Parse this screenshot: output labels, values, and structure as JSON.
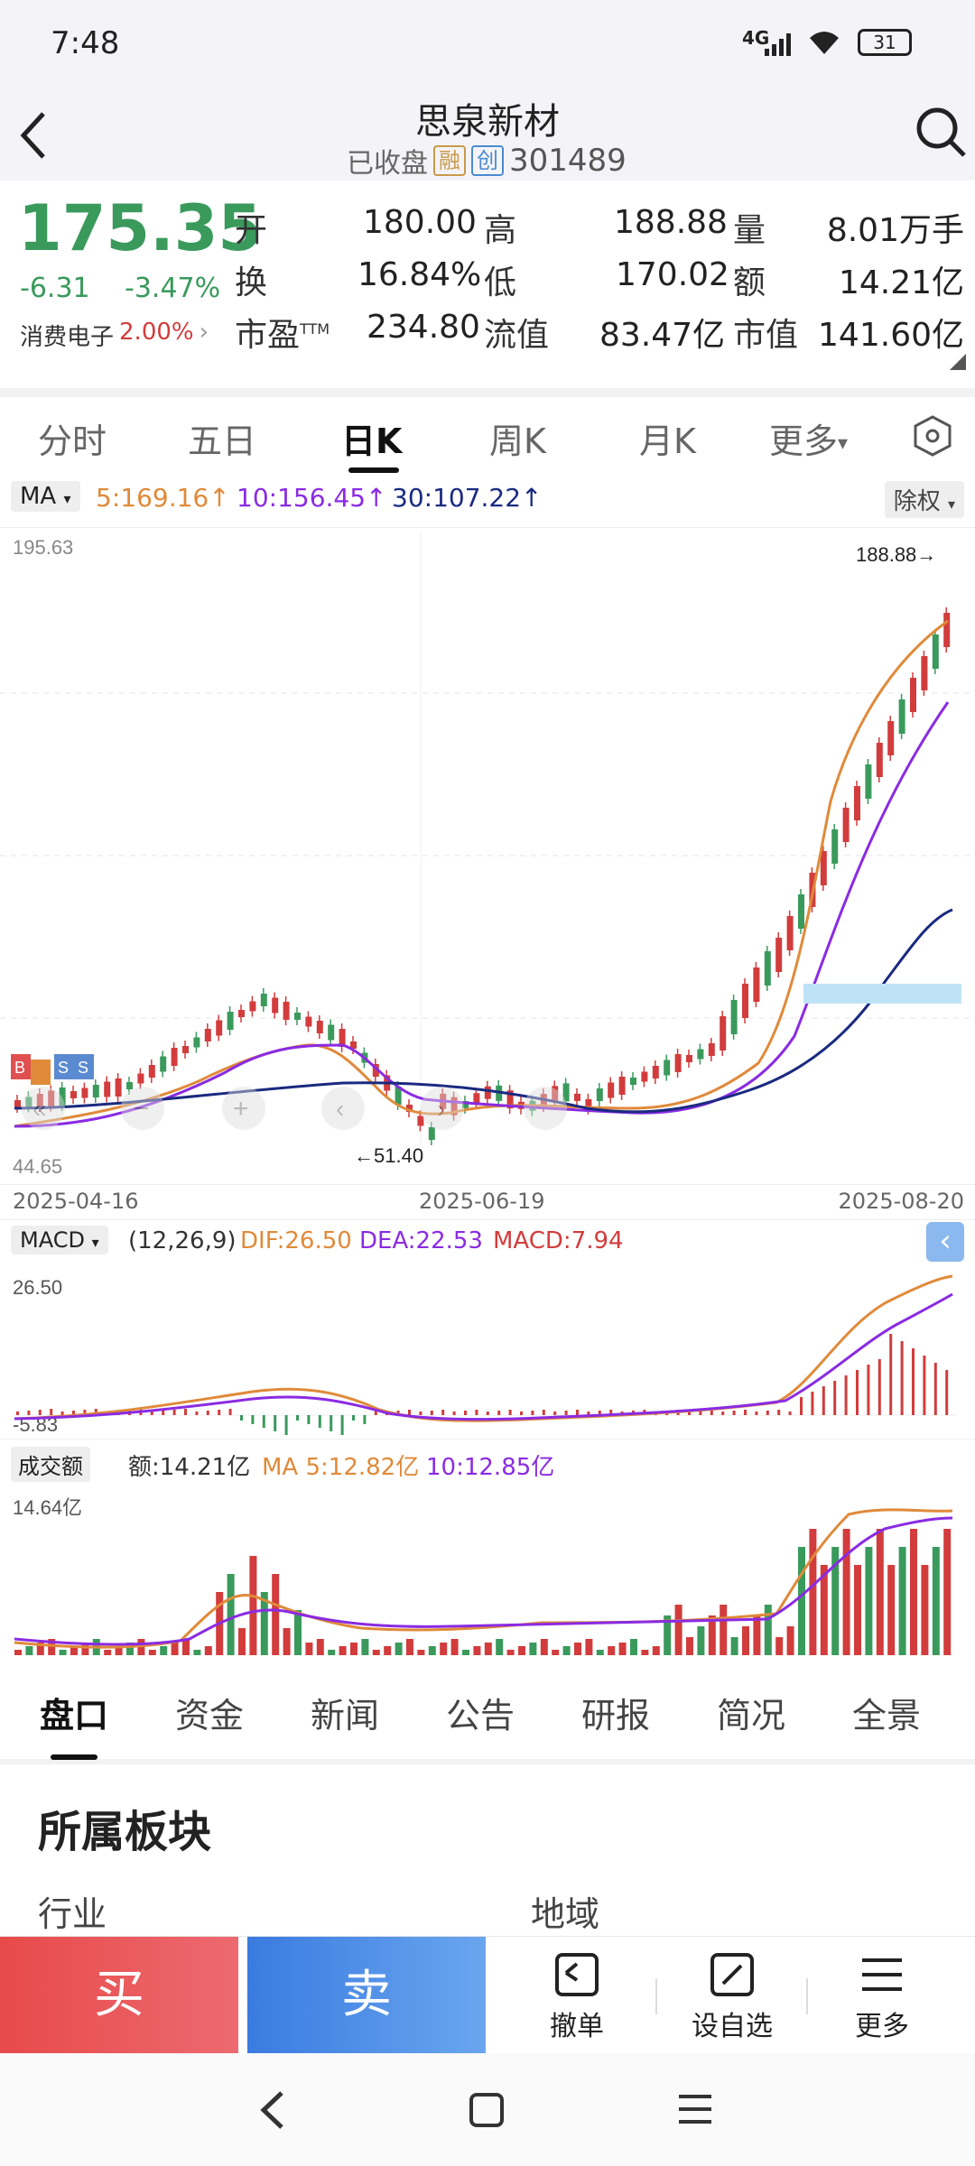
{
  "status_bar": {
    "time": "7:48",
    "network": "4G",
    "battery": "31"
  },
  "header": {
    "title": "思泉新材",
    "status": "已收盘",
    "badge_margin": "融",
    "badge_board": "创",
    "code": "301489"
  },
  "quote": {
    "price": "175.35",
    "change": "-6.31",
    "change_pct": "-3.47%",
    "sector_name": "消费电子",
    "sector_pct": "2.00%",
    "fields": [
      {
        "label": "开",
        "value": "180.00"
      },
      {
        "label": "高",
        "value": "188.88"
      },
      {
        "label": "量",
        "value": "8.01万手"
      },
      {
        "label": "换",
        "value": "16.84%"
      },
      {
        "label": "低",
        "value": "170.02"
      },
      {
        "label": "额",
        "value": "14.21亿"
      },
      {
        "label": "市盈",
        "sup": "TTM",
        "value": "234.80"
      },
      {
        "label": "流值",
        "value": "83.47亿"
      },
      {
        "label": "市值",
        "value": "141.60亿"
      }
    ]
  },
  "tabs": [
    "分时",
    "五日",
    "日K",
    "周K",
    "月K",
    "更多"
  ],
  "active_tab": "日K",
  "ma_bar": {
    "selector": "MA",
    "ma5": "5:169.16",
    "ma10": "10:156.45",
    "ma30": "30:107.22",
    "adjust": "除权"
  },
  "main_chart": {
    "y_top": "195.63",
    "y_bottom": "44.65",
    "high_mark": "188.88",
    "low_mark": "51.40",
    "dates": [
      "2025-04-16",
      "2025-06-19",
      "2025-08-20"
    ]
  },
  "macd_bar": {
    "selector": "MACD",
    "params": "(12,26,9)",
    "dif": "DIF:26.50",
    "dea": "DEA:22.53",
    "macd": "MACD:7.94",
    "y_top": "26.50",
    "y_bottom": "-5.83"
  },
  "vol_bar": {
    "label": "成交额",
    "amount": "额:14.21亿",
    "ma5": "MA 5:12.82亿",
    "ma10": "10:12.85亿",
    "y_top": "14.64亿"
  },
  "bottom_tabs": [
    "盘口",
    "资金",
    "新闻",
    "公告",
    "研报",
    "简况",
    "全景"
  ],
  "section": {
    "title": "所属板块",
    "left": "行业",
    "right": "地域"
  },
  "actions": {
    "buy": "买",
    "sell": "卖",
    "cancel": "撤单",
    "watch": "设自选",
    "more": "更多"
  },
  "colors": {
    "up": "#d23c3c",
    "down": "#3a9a5c",
    "ma5": "#e08a3a",
    "ma10": "#8a2be2",
    "ma30": "#1a2a80",
    "buy": "#e84a4a",
    "sell": "#3a7be0"
  }
}
